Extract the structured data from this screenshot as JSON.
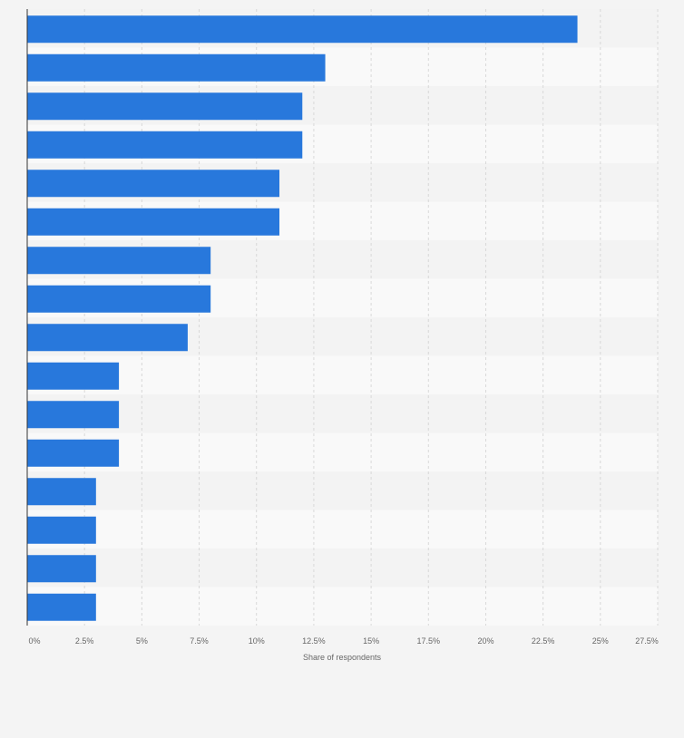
{
  "chart_data": {
    "type": "bar",
    "orientation": "horizontal",
    "title": "",
    "xlabel": "Share of respondents",
    "ylabel": "",
    "categories": [
      "",
      "",
      "",
      "",
      "",
      "",
      "",
      "",
      "",
      "",
      "",
      "",
      "",
      "",
      "",
      ""
    ],
    "values": [
      24,
      13,
      12,
      12,
      11,
      11,
      8,
      8,
      7,
      4,
      4,
      4,
      3,
      3,
      3,
      3
    ],
    "xlim": [
      0,
      27.5
    ],
    "ticks": [
      0,
      2.5,
      5,
      7.5,
      10,
      12.5,
      15,
      17.5,
      20,
      22.5,
      25,
      27.5
    ],
    "tick_labels": [
      "0%",
      "2.5%",
      "5%",
      "7.5%",
      "10%",
      "12.5%",
      "15%",
      "17.5%",
      "20%",
      "22.5%",
      "25%",
      "27.5%"
    ],
    "grid": true,
    "legend": "none"
  },
  "colors": {
    "bar": "#2878dc",
    "band_light": "#f9f9f9",
    "band_dark": "#f3f3f3",
    "grid": "#d8d8d8",
    "axis": "#333333",
    "tick_text": "#666666"
  }
}
